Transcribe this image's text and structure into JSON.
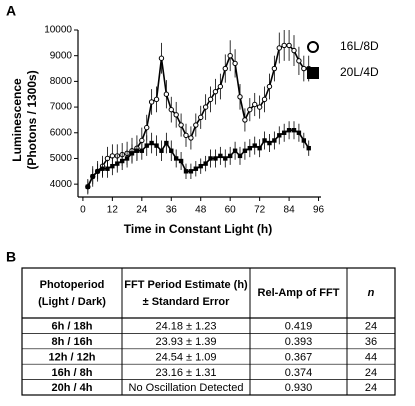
{
  "panels": [
    "A",
    "B"
  ],
  "chart_data": {
    "type": "line",
    "y_label": [
      "Luminescence",
      "(Photons / 1300s)"
    ],
    "x_label": "Time in Constant Light (h)",
    "x": [
      2,
      4,
      6,
      8,
      10,
      12,
      14,
      16,
      18,
      20,
      22,
      24,
      26,
      28,
      30,
      32,
      34,
      36,
      38,
      40,
      42,
      44,
      46,
      48,
      50,
      52,
      54,
      56,
      58,
      60,
      62,
      64,
      66,
      68,
      70,
      72,
      74,
      76,
      78,
      80,
      82,
      84,
      86,
      88,
      90,
      92
    ],
    "series": [
      {
        "name": "16L/8D",
        "marker": "open-circle",
        "color": "#000000",
        "values": [
          3900,
          4300,
          4500,
          4700,
          5000,
          5100,
          5100,
          5150,
          5200,
          5300,
          5400,
          5700,
          6200,
          7200,
          7300,
          8900,
          7500,
          6900,
          6700,
          6300,
          5900,
          5800,
          6300,
          6600,
          7000,
          7300,
          7600,
          7800,
          8500,
          9000,
          8700,
          7400,
          6500,
          6900,
          7100,
          7000,
          7300,
          7800,
          8500,
          9300,
          9400,
          9400,
          9200,
          8800,
          8500,
          8500
        ],
        "errors": [
          300,
          400,
          400,
          400,
          450,
          450,
          450,
          450,
          450,
          500,
          500,
          500,
          500,
          500,
          500,
          600,
          550,
          500,
          500,
          450,
          450,
          450,
          450,
          450,
          500,
          500,
          500,
          500,
          550,
          600,
          550,
          500,
          450,
          450,
          450,
          450,
          500,
          500,
          500,
          600,
          600,
          600,
          600,
          550,
          500,
          500
        ]
      },
      {
        "name": "20L/4D",
        "marker": "filled-square",
        "color": "#000000",
        "values": [
          3900,
          4300,
          4500,
          4600,
          4600,
          4700,
          4800,
          4900,
          5000,
          5200,
          5300,
          5300,
          5500,
          5600,
          5500,
          5300,
          5600,
          5300,
          5000,
          4900,
          4500,
          4500,
          4600,
          4700,
          4800,
          5000,
          5000,
          5100,
          5000,
          5100,
          5300,
          5100,
          5300,
          5400,
          5500,
          5400,
          5700,
          5600,
          5700,
          5900,
          6000,
          6100,
          6100,
          6000,
          5700,
          5400
        ],
        "errors": [
          250,
          300,
          300,
          350,
          350,
          350,
          350,
          350,
          350,
          350,
          350,
          350,
          400,
          400,
          400,
          400,
          400,
          400,
          350,
          350,
          300,
          300,
          300,
          300,
          300,
          350,
          350,
          350,
          350,
          350,
          350,
          350,
          350,
          350,
          350,
          350,
          350,
          350,
          350,
          350,
          350,
          350,
          350,
          350,
          300,
          300
        ]
      }
    ],
    "xlim": [
      -2,
      97
    ],
    "ylim": [
      3500,
      10000
    ],
    "xticks": [
      0,
      12,
      24,
      36,
      48,
      60,
      72,
      84,
      96
    ],
    "yticks": [
      4000,
      5000,
      6000,
      7000,
      8000,
      9000,
      10000
    ],
    "legend": "right"
  },
  "table": {
    "header": [
      [
        "Photoperiod",
        "(Light / Dark)"
      ],
      [
        "FFT Period Estimate (h)",
        "± Standard Error"
      ],
      [
        "Rel-Amp of FFT"
      ],
      [
        "n"
      ]
    ],
    "rows": [
      [
        "6h / 18h",
        "24.18 ± 1.23",
        "0.419",
        "24"
      ],
      [
        "8h / 16h",
        "23.93 ± 1.39",
        "0.393",
        "36"
      ],
      [
        "12h / 12h",
        "24.54 ± 1.09",
        "0.367",
        "44"
      ],
      [
        "16h / 8h",
        "23.16 ± 1.31",
        "0.374",
        "24"
      ],
      [
        "20h / 4h",
        "No Oscillation Detected",
        "0.930",
        "24"
      ]
    ]
  }
}
